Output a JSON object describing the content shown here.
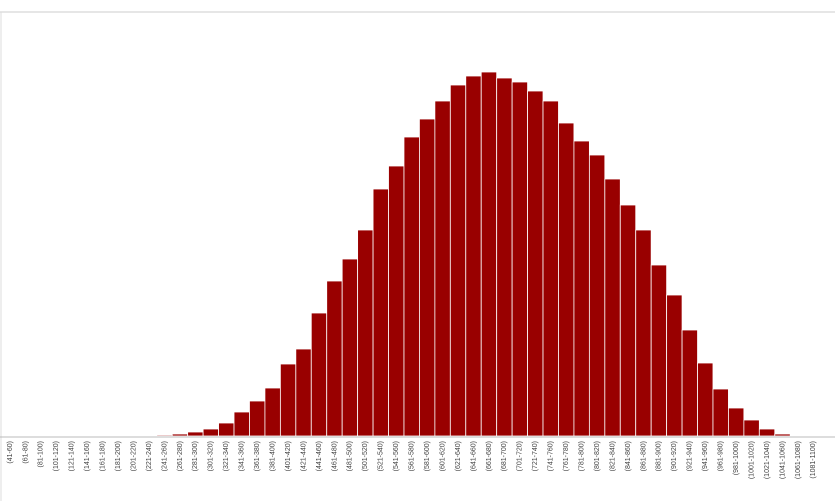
{
  "chart_data": {
    "type": "bar",
    "color": "#990000",
    "categories": [
      "(41-60)",
      "(61-80)",
      "(81-100)",
      "(101-120)",
      "(121-140)",
      "(141-160)",
      "(161-180)",
      "(181-200)",
      "(201-220)",
      "(221-240)",
      "(241-260)",
      "(261-280)",
      "(281-300)",
      "(301-320)",
      "(321-340)",
      "(341-360)",
      "(361-380)",
      "(381-400)",
      "(401-420)",
      "(421-440)",
      "(441-460)",
      "(461-480)",
      "(481-500)",
      "(501-520)",
      "(521-540)",
      "(541-560)",
      "(561-580)",
      "(581-600)",
      "(601-620)",
      "(621-640)",
      "(641-660)",
      "(661-680)",
      "(681-700)",
      "(701-720)",
      "(721-740)",
      "(741-760)",
      "(761-780)",
      "(781-800)",
      "(801-820)",
      "(821-840)",
      "(841-860)",
      "(861-880)",
      "(881-900)",
      "(901-920)",
      "(921-940)",
      "(941-960)",
      "(961-980)",
      "(981-1000)",
      "(1001-1020)",
      "(1021-1040)",
      "(1041-1060)",
      "(1061-1080)",
      "(1081-1100)"
    ],
    "values": [
      0,
      0,
      0,
      0,
      0,
      0,
      0,
      0,
      0,
      0,
      1,
      2,
      4,
      7,
      13,
      24,
      35,
      48,
      72,
      87,
      123,
      155,
      177,
      206,
      247,
      270,
      299,
      317,
      335,
      351,
      360,
      364,
      358,
      354,
      345,
      335,
      313,
      295,
      281,
      257,
      231,
      206,
      171,
      141,
      106,
      73,
      47,
      28,
      16,
      7,
      2,
      0,
      0
    ],
    "ylim": [
      0,
      364
    ]
  }
}
